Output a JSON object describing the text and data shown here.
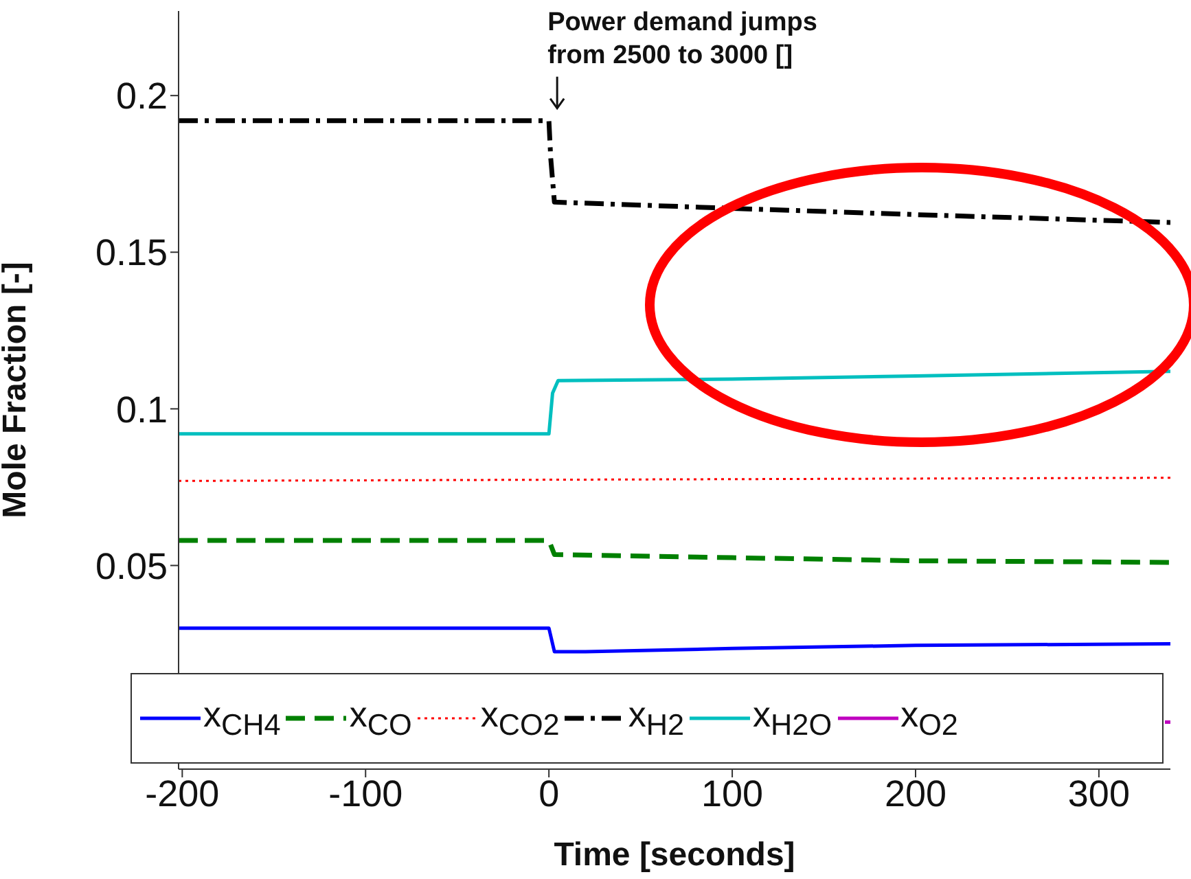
{
  "chart_data": {
    "type": "line",
    "xlabel": "Time [seconds]",
    "ylabel": "Mole Fraction [-]",
    "xlim": [
      -202,
      339
    ],
    "xticks": [
      -200,
      -100,
      0,
      100,
      200,
      300
    ],
    "ylim": [
      -0.015,
      0.227
    ],
    "yticks": [
      0.05,
      0.1,
      0.15,
      0.2
    ],
    "grid": false,
    "legend": "bottom",
    "marker": "none",
    "annotations": [
      {
        "text": "Power demand jumps\nfrom 2500 to 3000 []",
        "x": 0,
        "y": 0.192
      }
    ],
    "series": [
      {
        "name": "x$_{CH4}$",
        "color": "#0000ff",
        "line_style": "solid",
        "x": [
          -202,
          0,
          3,
          20,
          100,
          200,
          339
        ],
        "values": [
          0.03,
          0.03,
          0.0225,
          0.0225,
          0.0235,
          0.0245,
          0.025
        ]
      },
      {
        "name": "x$_{CO}$",
        "color": "#008000",
        "line_style": "dashed",
        "x": [
          -202,
          0,
          3,
          100,
          200,
          339
        ],
        "values": [
          0.058,
          0.058,
          0.0535,
          0.0525,
          0.0515,
          0.051
        ]
      },
      {
        "name": "x$_{CO2}$",
        "color": "#ff0000",
        "line_style": "dotted",
        "x": [
          -202,
          339
        ],
        "values": [
          0.077,
          0.078
        ]
      },
      {
        "name": "x$_{H2}$",
        "color": "#000000",
        "line_style": "dashdot",
        "x": [
          -202,
          0,
          1,
          3,
          100,
          200,
          339
        ],
        "values": [
          0.192,
          0.192,
          0.18,
          0.166,
          0.164,
          0.162,
          0.1595
        ]
      },
      {
        "name": "x$_{H2O}$",
        "color": "#00bfbf",
        "line_style": "solid",
        "x": [
          -202,
          0,
          2,
          5,
          100,
          200,
          339
        ],
        "values": [
          0.092,
          0.092,
          0.105,
          0.109,
          0.1095,
          0.1105,
          0.112
        ]
      },
      {
        "name": "x$_{O2}$",
        "color": "#bf00bf",
        "line_style": "solid",
        "x": [
          336,
          339
        ],
        "values": [
          0,
          0
        ]
      }
    ]
  }
}
